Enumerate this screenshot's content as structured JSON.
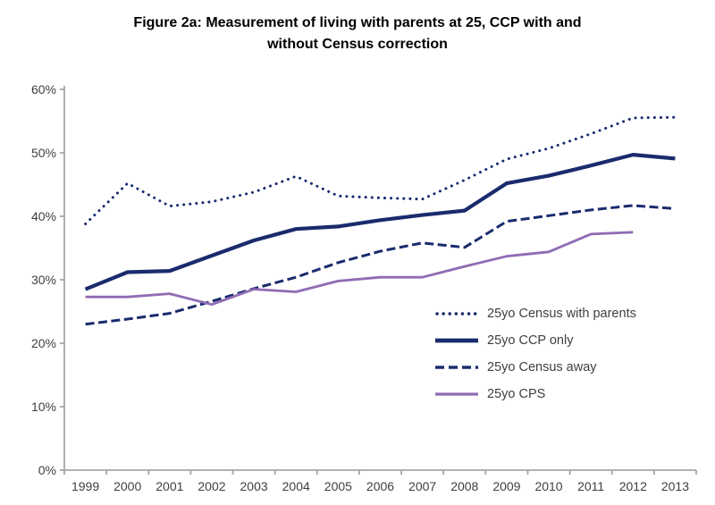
{
  "title": {
    "line1": "Figure 2a: Measurement of living with parents at 25, CCP with and",
    "line2": "without Census correction"
  },
  "chart_data": {
    "type": "line",
    "title": "Figure 2a: Measurement of living with parents at 25, CCP with and without Census correction",
    "xlabel": "",
    "ylabel": "",
    "categories": [
      "1999",
      "2000",
      "2001",
      "2002",
      "2003",
      "2004",
      "2005",
      "2006",
      "2007",
      "2008",
      "2009",
      "2010",
      "2011",
      "2012",
      "2013"
    ],
    "series": [
      {
        "name": "25yo Census with parents",
        "style": "dotted",
        "color": "#1a2b6d",
        "width": 3,
        "values": [
          38.8,
          45.2,
          41.6,
          42.3,
          43.8,
          46.3,
          43.2,
          42.9,
          42.7,
          45.7,
          49.0,
          50.7,
          53.0,
          55.5,
          55.6
        ]
      },
      {
        "name": "25yo CCP only",
        "style": "solid",
        "color": "#1a2b6d",
        "width": 4.2,
        "values": [
          28.5,
          31.2,
          31.4,
          33.8,
          36.2,
          38.0,
          38.4,
          39.4,
          40.2,
          40.9,
          45.2,
          46.4,
          48.0,
          49.7,
          49.1
        ]
      },
      {
        "name": "25yo Census away",
        "style": "dashed",
        "color": "#1a2b6d",
        "width": 3,
        "values": [
          23.0,
          23.8,
          24.7,
          26.6,
          28.6,
          30.4,
          32.7,
          34.5,
          35.8,
          35.1,
          39.2,
          40.1,
          41.0,
          41.7,
          41.2
        ]
      },
      {
        "name": "25yo CPS",
        "style": "solid",
        "color": "#8f6cb4",
        "width": 2.8,
        "values": [
          27.3,
          27.3,
          27.8,
          26.1,
          28.5,
          28.1,
          29.8,
          30.4,
          30.4,
          32.1,
          33.7,
          34.4,
          37.2,
          37.5,
          null
        ]
      }
    ],
    "ylim": [
      0,
      60
    ],
    "ytick_step": 10,
    "ytick_labels": [
      "0%",
      "10%",
      "20%",
      "30%",
      "40%",
      "50%",
      "60%"
    ],
    "grid": false,
    "legend_position": "inside-right",
    "colors": {
      "navy": "#1a2b6d",
      "purple": "#8f6cb4",
      "axis": "#a6a6a6",
      "tick_text": "#3f3f3f",
      "title_text": "#000000",
      "background": "#ffffff"
    }
  }
}
